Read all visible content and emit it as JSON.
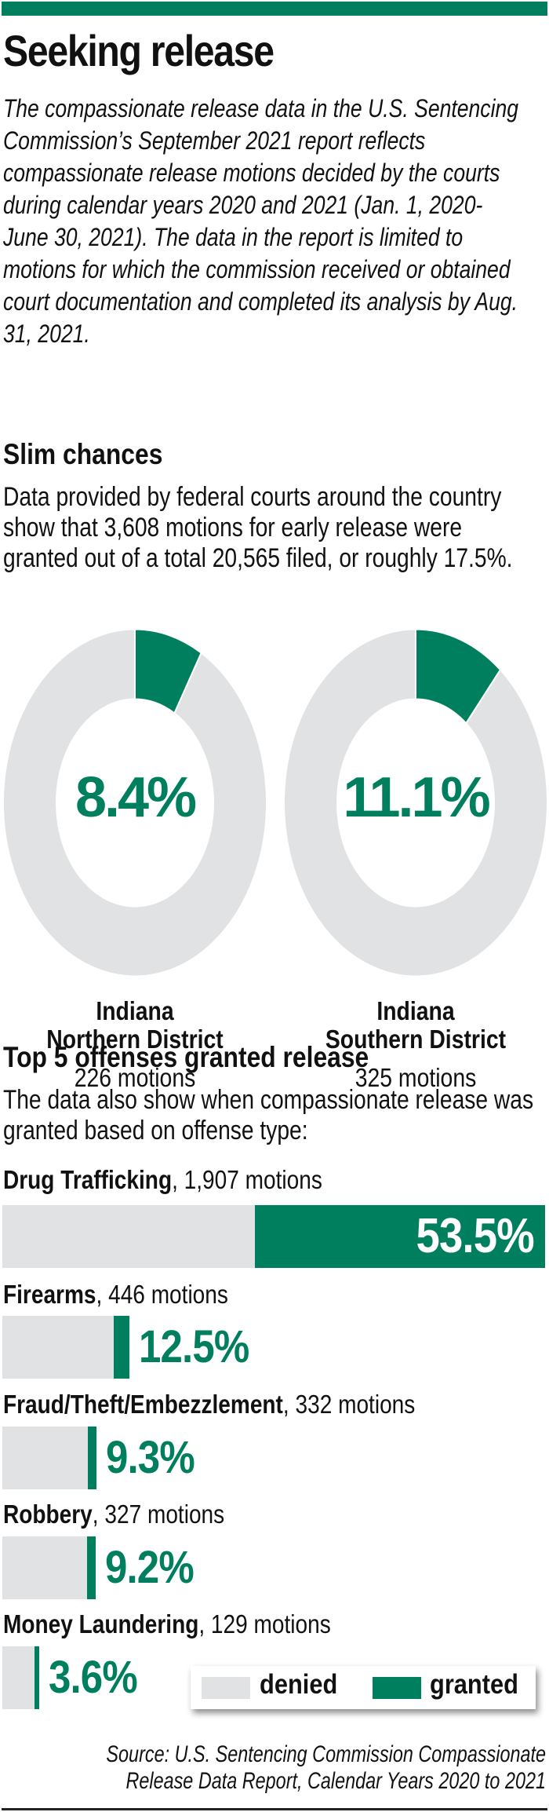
{
  "header": {
    "title": "Seeking release",
    "intro": "The compassionate release data in the U.S. Sentencing Commission’s September 2021 report reflects compassionate release motions decided by the courts during calendar years 2020 and 2021 (Jan. 1, 2020-June 30, 2021). The data in the report is limited to motions for which the commission received or obtained court documentation and completed its analysis by Aug. 31, 2021."
  },
  "section1": {
    "heading": "Slim chances",
    "text": "Data provided by federal courts around the country show that 3,608 motions for early release were granted out of a total 20,565 filed, or roughly 17.5%."
  },
  "section2": {
    "heading": "Top 5 offenses granted release",
    "text": "The data also show when compassionate release was granted based on offense type:"
  },
  "colors": {
    "granted": "#007f5f",
    "denied": "#e1e2e3",
    "accent_bar": "#007f5f"
  },
  "donuts": [
    {
      "pct_label": "8.4%",
      "line1": "Indiana",
      "line2": "Northern District",
      "count": "226 motions"
    },
    {
      "pct_label": "11.1%",
      "line1": "Indiana",
      "line2": "Southern District",
      "count": "325 motions"
    }
  ],
  "bars": [
    {
      "offense": "Drug Trafficking",
      "motions": ", 1,907 motions",
      "pct_label": "53.5%"
    },
    {
      "offense": "Firearms",
      "motions": ", 446 motions",
      "pct_label": "12.5%"
    },
    {
      "offense": "Fraud/Theft/Embezzlement",
      "motions": ", 332 motions",
      "pct_label": "9.3%"
    },
    {
      "offense": "Robbery",
      "motions": ", 327 motions",
      "pct_label": "9.2%"
    },
    {
      "offense": "Money Laundering",
      "motions": ", 129 motions",
      "pct_label": "3.6%"
    }
  ],
  "legend": {
    "denied": "denied",
    "granted": "granted"
  },
  "source": {
    "line1": "Source: U.S. Sentencing Commission Compassionate",
    "line2": "Release Data Report, Calendar Years 2020 to 2021"
  },
  "chart_data": [
    {
      "type": "pie",
      "title": "Slim chances",
      "subtitle": "Data provided by federal courts around the country show that 3,608 motions for early release were granted out of a total 20,565 filed, or roughly 17.5%.",
      "series": [
        {
          "name": "Indiana Northern District",
          "total_motions": 226,
          "categories": [
            "granted",
            "denied"
          ],
          "values": [
            8.4,
            91.6
          ]
        },
        {
          "name": "Indiana Southern District",
          "total_motions": 325,
          "categories": [
            "granted",
            "denied"
          ],
          "values": [
            11.1,
            88.9
          ]
        }
      ],
      "legend": [
        "granted",
        "denied"
      ]
    },
    {
      "type": "bar",
      "orientation": "horizontal-stacked",
      "title": "Top 5 offenses granted release",
      "subtitle": "The data also show when compassionate release was granted based on offense type:",
      "categories": [
        "Drug Trafficking",
        "Firearms",
        "Fraud/Theft/Embezzlement",
        "Robbery",
        "Money Laundering"
      ],
      "motions": [
        1907,
        446,
        332,
        327,
        129
      ],
      "series": [
        {
          "name": "granted",
          "values": [
            53.5,
            12.5,
            9.3,
            9.2,
            3.6
          ]
        },
        {
          "name": "denied",
          "values": [
            46.5,
            87.5,
            90.7,
            90.8,
            96.4
          ]
        }
      ],
      "legend": [
        "denied",
        "granted"
      ],
      "legend_position": "bottom-right",
      "source": "U.S. Sentencing Commission Compassionate Release Data Report, Calendar Years 2020 to 2021"
    }
  ]
}
